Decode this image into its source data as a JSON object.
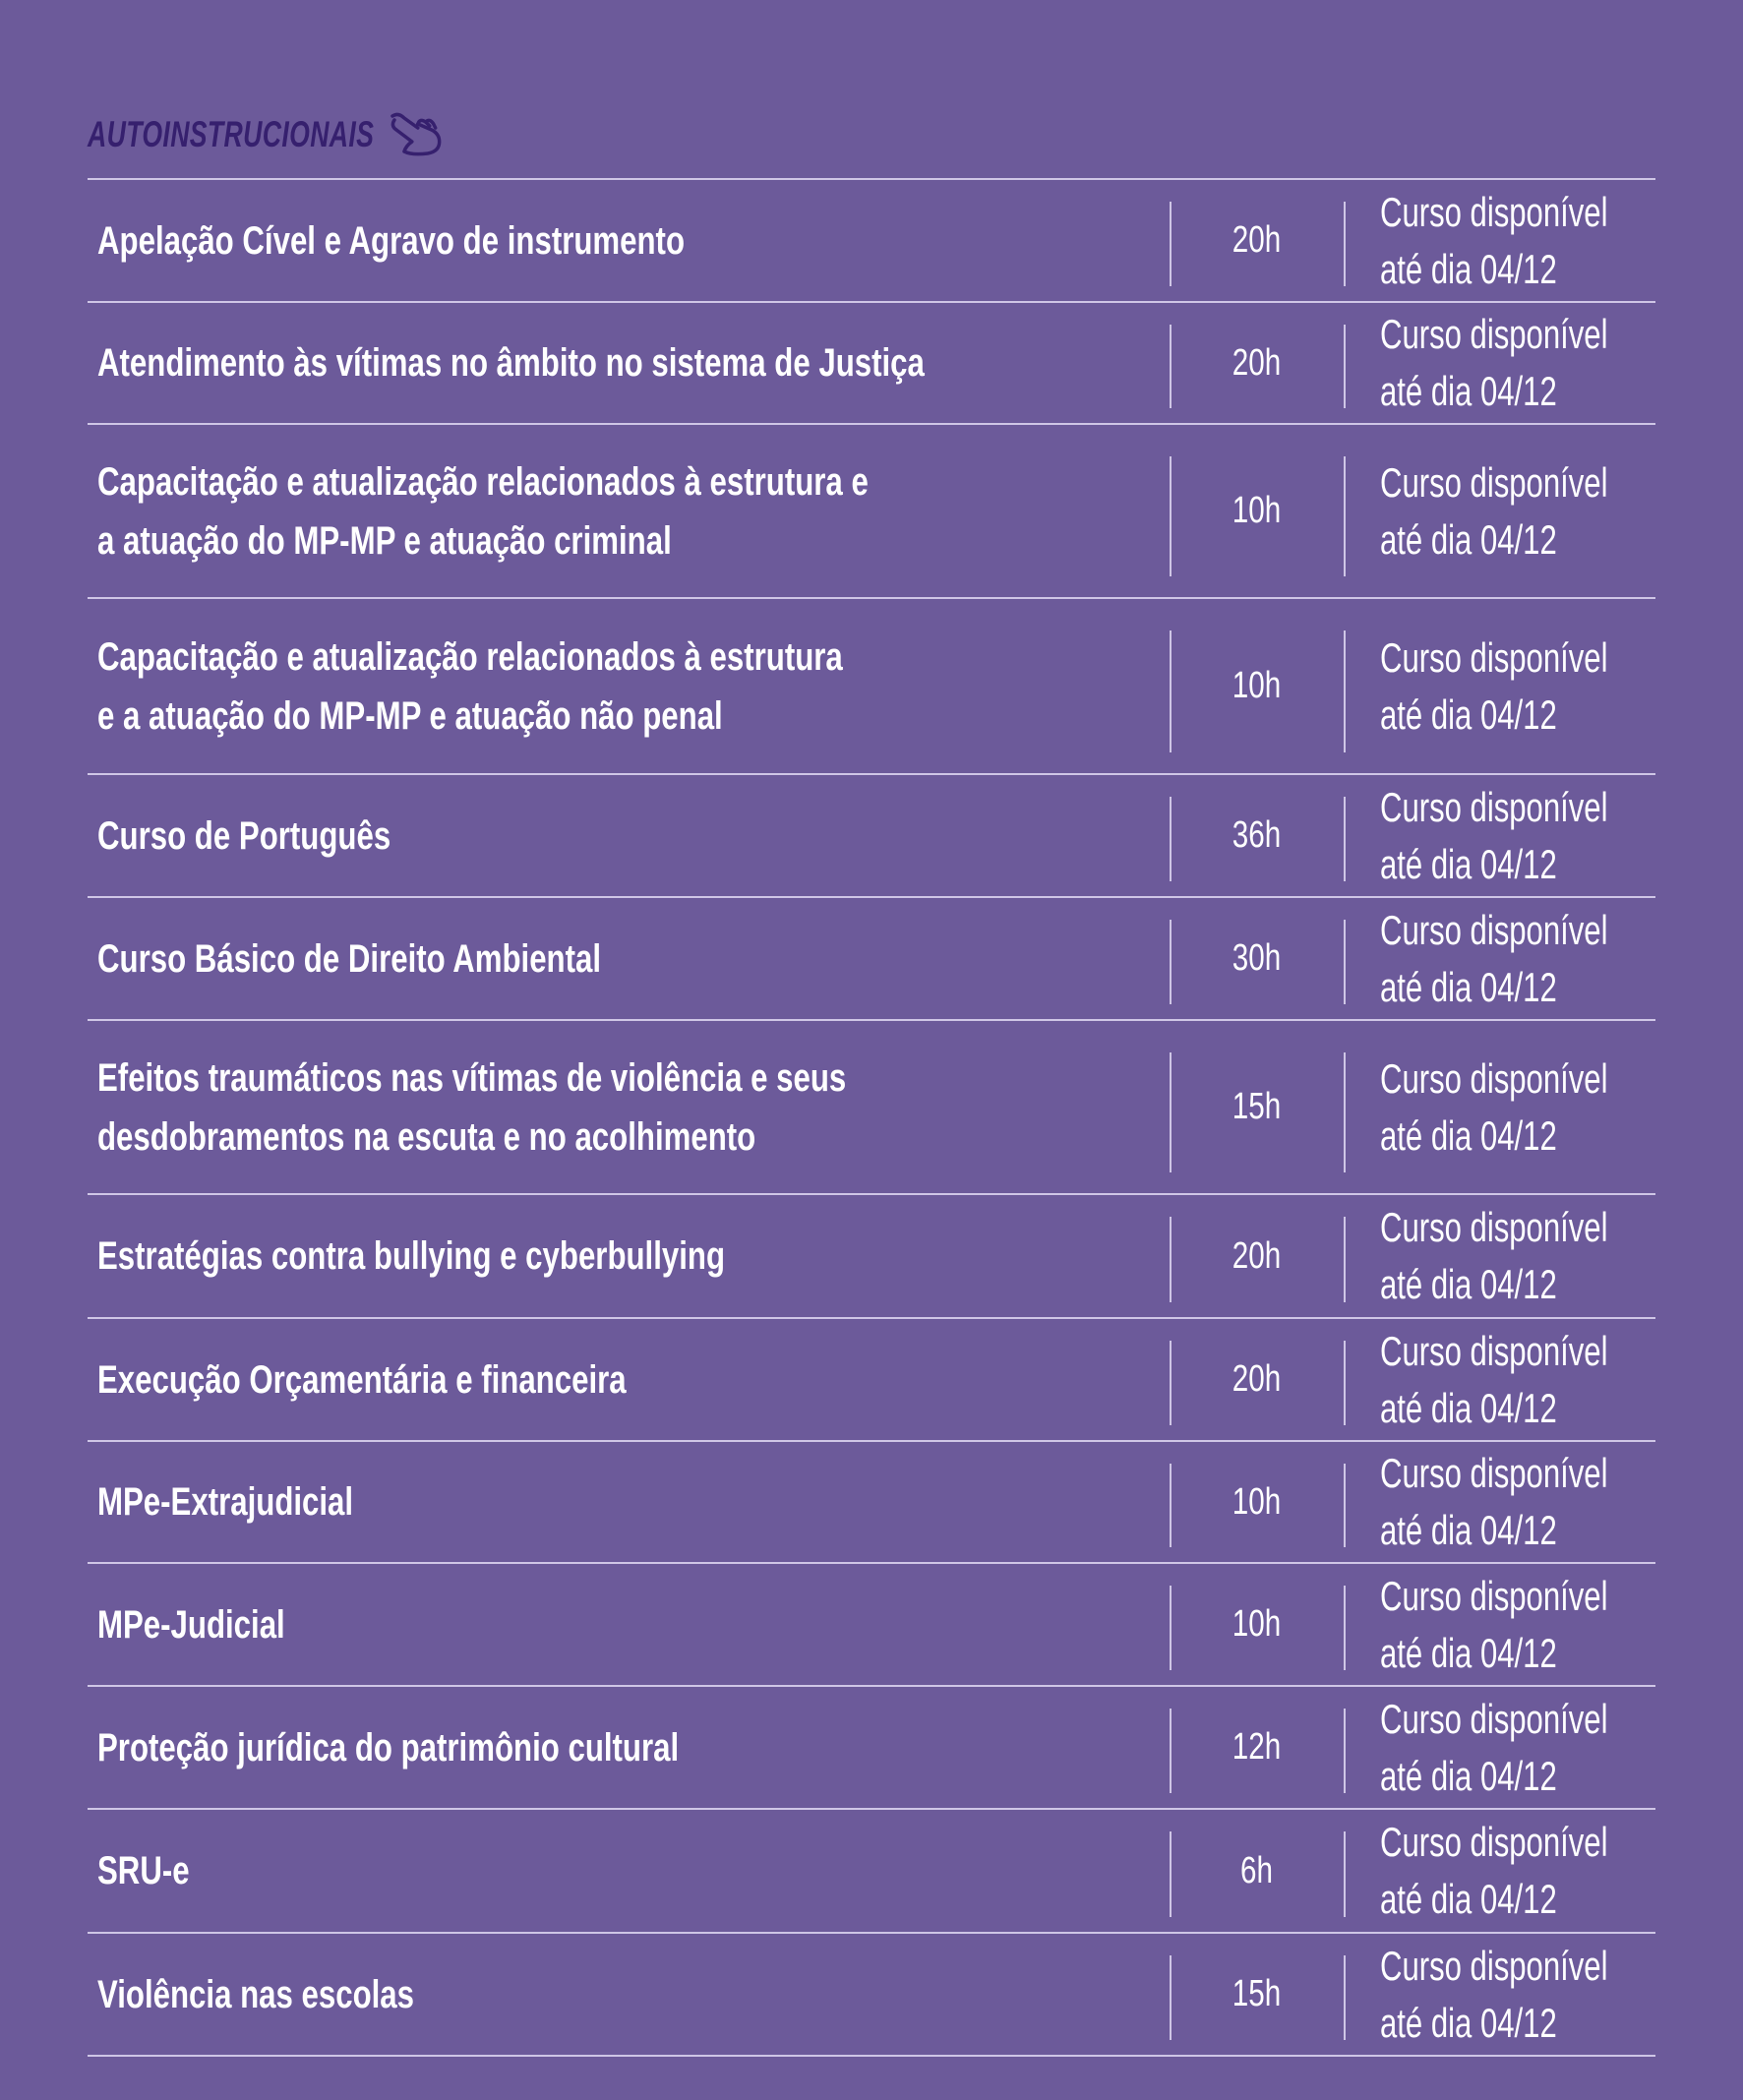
{
  "section": {
    "title": "AUTOINSTRUCIONAIS",
    "icon": "pointing-hand-icon",
    "heading_color": "#36206e",
    "background_color": "#6c5a9a"
  },
  "courses": [
    {
      "title": "Apelação Cível e Agravo de instrumento",
      "hours": "20h",
      "availability_line1": "Curso disponível",
      "availability_line2": "até dia 04/12"
    },
    {
      "title": "Atendimento às vítimas no âmbito no sistema de Justiça",
      "hours": "20h",
      "availability_line1": "Curso disponível",
      "availability_line2": "até dia 04/12"
    },
    {
      "title": "Capacitação e atualização relacionados à estrutura e\na atuação do MP-MP e atuação criminal",
      "hours": "10h",
      "availability_line1": "Curso disponível",
      "availability_line2": "até dia 04/12"
    },
    {
      "title": "Capacitação e atualização relacionados à estrutura\ne a atuação do MP-MP e atuação não penal",
      "hours": "10h",
      "availability_line1": "Curso disponível",
      "availability_line2": "até dia 04/12"
    },
    {
      "title": "Curso de Português",
      "hours": "36h",
      "availability_line1": "Curso disponível",
      "availability_line2": "até dia 04/12"
    },
    {
      "title": "Curso Básico de Direito Ambiental",
      "hours": "30h",
      "availability_line1": "Curso disponível",
      "availability_line2": "até dia 04/12"
    },
    {
      "title": "Efeitos traumáticos nas vítimas de violência e seus\ndesdobramentos na escuta e no acolhimento",
      "hours": "15h",
      "availability_line1": "Curso disponível",
      "availability_line2": "até dia 04/12"
    },
    {
      "title": "Estratégias contra bullying e cyberbullying",
      "hours": "20h",
      "availability_line1": "Curso disponível",
      "availability_line2": "até dia 04/12"
    },
    {
      "title": "Execução Orçamentária e financeira",
      "hours": "20h",
      "availability_line1": "Curso disponível",
      "availability_line2": "até dia 04/12"
    },
    {
      "title": "MPe-Extrajudicial",
      "hours": "10h",
      "availability_line1": "Curso disponível",
      "availability_line2": "até dia 04/12"
    },
    {
      "title": "MPe-Judicial",
      "hours": "10h",
      "availability_line1": "Curso disponível",
      "availability_line2": "até dia 04/12"
    },
    {
      "title": "Proteção jurídica do patrimônio cultural",
      "hours": "12h",
      "availability_line1": "Curso disponível",
      "availability_line2": "até dia 04/12"
    },
    {
      "title": "SRU-e",
      "hours": "6h",
      "availability_line1": "Curso disponível",
      "availability_line2": "até dia 04/12"
    },
    {
      "title": "Violência nas escolas",
      "hours": "15h",
      "availability_line1": "Curso disponível",
      "availability_line2": "até dia 04/12"
    }
  ]
}
